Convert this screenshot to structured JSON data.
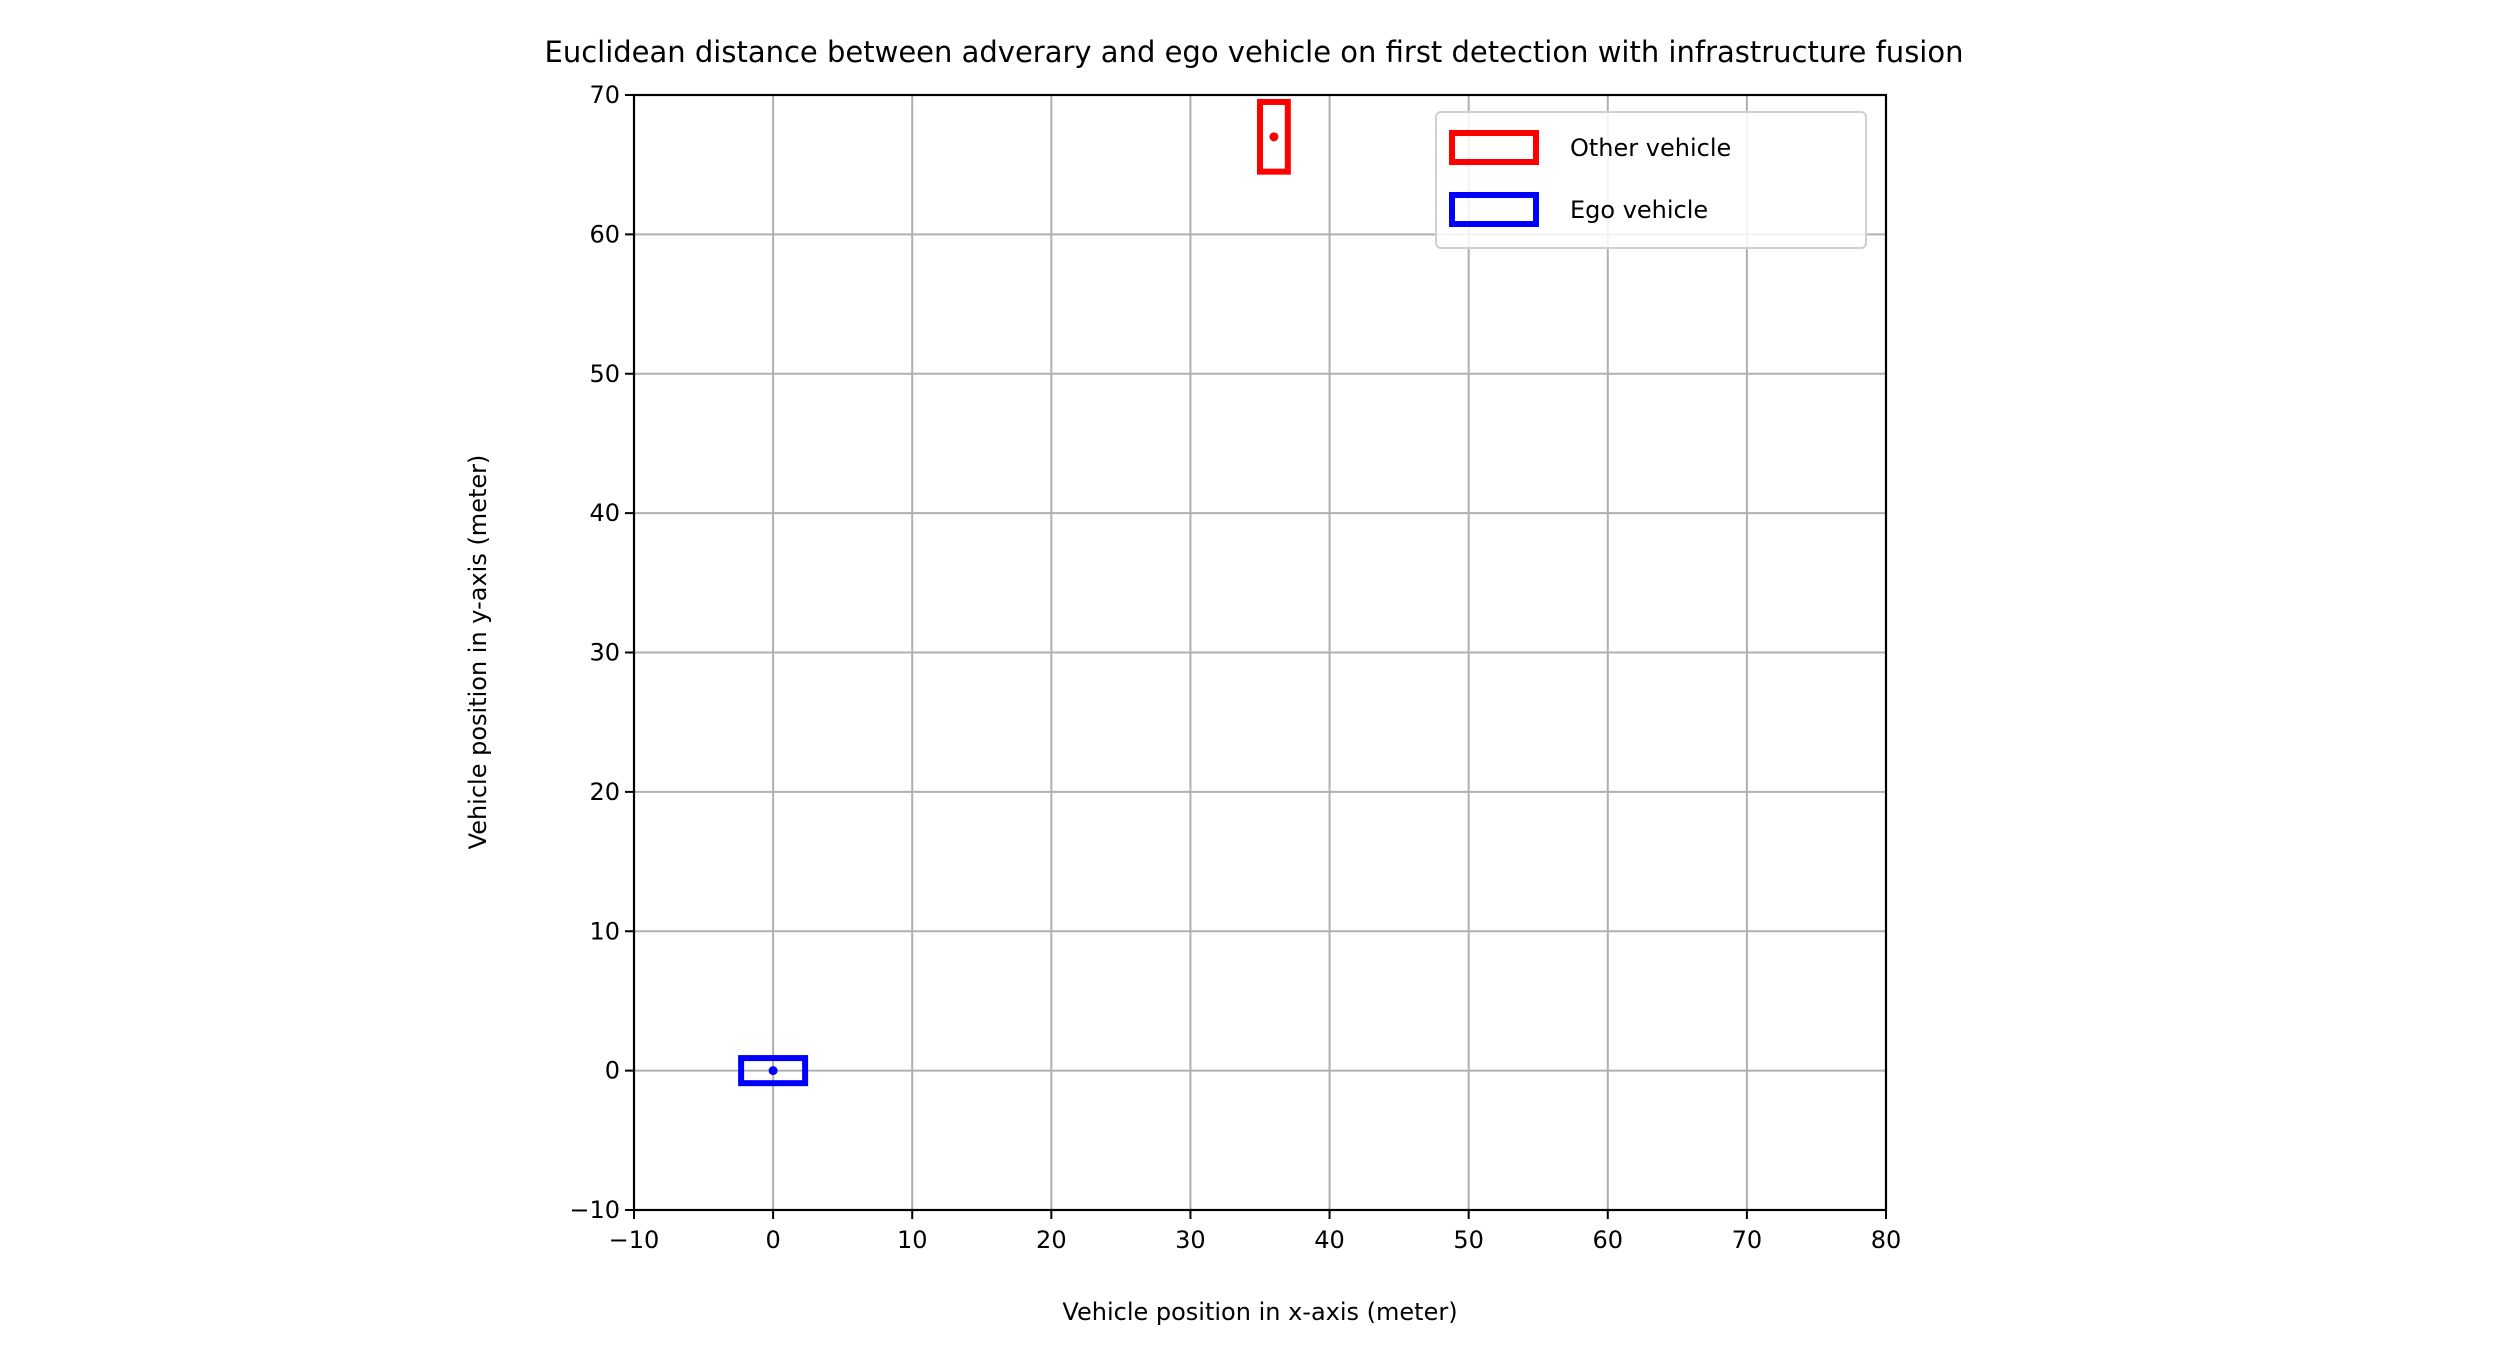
{
  "chart_data": {
    "type": "scatter",
    "title": "Euclidean distance between adverary and ego vehicle on first detection with infrastructure fusion",
    "xlabel": "Vehicle position in x-axis (meter)",
    "ylabel": "Vehicle position in y-axis (meter)",
    "xlim": [
      -10,
      80
    ],
    "ylim": [
      -10,
      70
    ],
    "xticks": [
      -10,
      0,
      10,
      20,
      30,
      40,
      50,
      60,
      70,
      80
    ],
    "yticks": [
      -10,
      0,
      10,
      20,
      30,
      40,
      50,
      60,
      70
    ],
    "xtick_labels": [
      "−10",
      "0",
      "10",
      "20",
      "30",
      "40",
      "50",
      "60",
      "70",
      "80"
    ],
    "ytick_labels": [
      "−10",
      "0",
      "10",
      "20",
      "30",
      "40",
      "50",
      "60",
      "70"
    ],
    "grid": true,
    "legend_position": "upper-right",
    "series": [
      {
        "name": "Other vehicle",
        "color": "#ff0000",
        "shape": "rectangle",
        "center": [
          36,
          67
        ],
        "extent": [
          2,
          5
        ]
      },
      {
        "name": "Ego vehicle",
        "color": "#0000ff",
        "shape": "rectangle",
        "center": [
          0,
          0
        ],
        "extent": [
          4.6,
          1.8
        ]
      }
    ]
  }
}
